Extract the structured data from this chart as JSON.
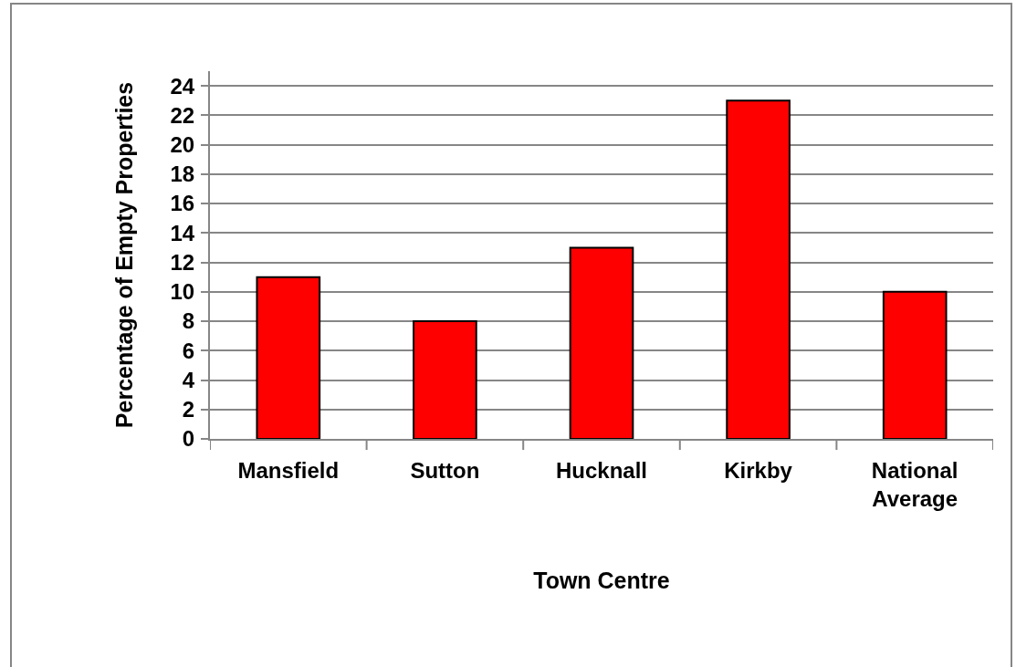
{
  "chart_data": {
    "type": "bar",
    "xlabel": "Town Centre",
    "ylabel": "Percentage of Empty Properties",
    "categories": [
      "Mansfield",
      "Sutton",
      "Hucknall",
      "Kirkby",
      "National Average"
    ],
    "values": [
      11,
      8,
      13,
      23,
      10
    ],
    "color": "#ff0000",
    "ylim": [
      0,
      25
    ],
    "yticks": [
      0,
      2,
      4,
      6,
      8,
      10,
      12,
      14,
      16,
      18,
      20,
      22,
      24
    ],
    "grid": "y"
  }
}
